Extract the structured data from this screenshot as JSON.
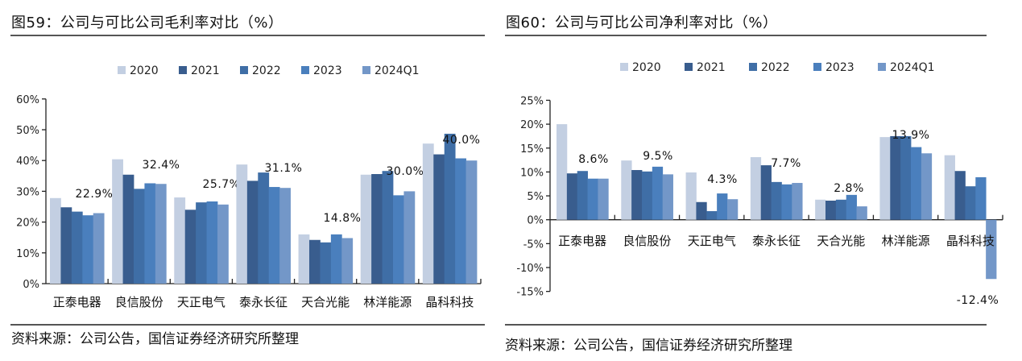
{
  "legend": [
    {
      "label": "2020",
      "color": "#c3cfe2"
    },
    {
      "label": "2021",
      "color": "#395d8e"
    },
    {
      "label": "2022",
      "color": "#3f6ea6"
    },
    {
      "label": "2023",
      "color": "#4a7fbd"
    },
    {
      "label": "2024Q1",
      "color": "#7397c8"
    }
  ],
  "chart_data": [
    {
      "type": "bar",
      "title": "图59：公司与可比公司毛利率对比（%）",
      "source": "资料来源：公司公告，国信证券经济研究所整理",
      "xlabel": "",
      "ylabel": "",
      "ylim": [
        0,
        60
      ],
      "yticks": [
        0,
        10,
        20,
        30,
        40,
        50,
        60
      ],
      "ytick_labels": [
        "0%",
        "10%",
        "20%",
        "30%",
        "40%",
        "50%",
        "60%"
      ],
      "grid": false,
      "legend_position": "top",
      "categories": [
        "正泰电器",
        "良信股份",
        "天正电气",
        "泰永长征",
        "天合光能",
        "林洋能源",
        "晶科科技"
      ],
      "series": [
        {
          "name": "2020",
          "values": [
            27.8,
            40.4,
            28.0,
            38.7,
            16.0,
            35.4,
            45.5
          ]
        },
        {
          "name": "2021",
          "values": [
            24.8,
            35.4,
            24.0,
            33.4,
            14.2,
            35.6,
            42.0
          ]
        },
        {
          "name": "2022",
          "values": [
            23.4,
            30.8,
            26.4,
            36.1,
            13.4,
            36.6,
            48.7
          ]
        },
        {
          "name": "2023",
          "values": [
            22.2,
            32.6,
            26.7,
            31.4,
            16.0,
            28.7,
            40.7
          ]
        },
        {
          "name": "2024Q1",
          "values": [
            22.9,
            32.4,
            25.7,
            31.1,
            14.8,
            30.0,
            40.0
          ]
        }
      ],
      "annotations": [
        "22.9%",
        "32.4%",
        "25.7%",
        "31.1%",
        "14.8%",
        "30.0%",
        "40.0%"
      ]
    },
    {
      "type": "bar",
      "title": "图60：公司与可比公司净利率对比（%）",
      "source": "资料来源：公司公告，国信证券经济研究所整理",
      "xlabel": "",
      "ylabel": "",
      "ylim": [
        -15,
        25
      ],
      "yticks": [
        -15,
        -10,
        -5,
        0,
        5,
        10,
        15,
        20,
        25
      ],
      "ytick_labels": [
        "-15%",
        "-10%",
        "-5%",
        "0%",
        "5%",
        "10%",
        "15%",
        "20%",
        "25%"
      ],
      "grid": false,
      "legend_position": "top",
      "categories": [
        "正泰电器",
        "良信股份",
        "天正电气",
        "泰永长征",
        "天合光能",
        "林洋能源",
        "晶科科技"
      ],
      "series": [
        {
          "name": "2020",
          "values": [
            20.0,
            12.4,
            9.9,
            13.1,
            4.2,
            17.3,
            13.5
          ]
        },
        {
          "name": "2021",
          "values": [
            9.7,
            10.4,
            3.7,
            11.4,
            4.0,
            17.5,
            10.2
          ]
        },
        {
          "name": "2022",
          "values": [
            10.2,
            10.1,
            1.8,
            7.9,
            4.2,
            17.5,
            7.0
          ]
        },
        {
          "name": "2023",
          "values": [
            8.6,
            11.1,
            5.5,
            7.4,
            5.2,
            15.2,
            8.9
          ]
        },
        {
          "name": "2024Q1",
          "values": [
            8.6,
            9.5,
            4.3,
            7.7,
            2.8,
            13.9,
            -12.4
          ]
        }
      ],
      "annotations": [
        "8.6%",
        "9.5%",
        "4.3%",
        "7.7%",
        "2.8%",
        "13.9%",
        "-12.4%"
      ]
    }
  ]
}
